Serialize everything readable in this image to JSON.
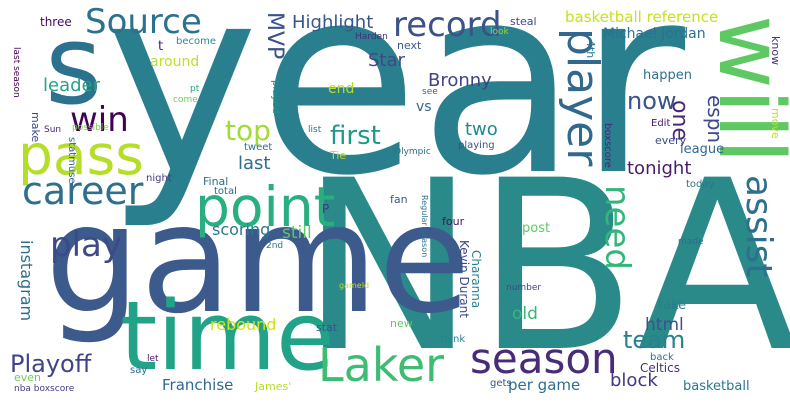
{
  "words": [
    {
      "id": "year",
      "text": "year",
      "color": "#2a7f8e"
    },
    {
      "id": "nba",
      "text": "NBA",
      "color": "#2a8a8a"
    },
    {
      "id": "game",
      "text": "game",
      "color": "#3c5a8c"
    },
    {
      "id": "time",
      "text": "time",
      "color": "#20a386"
    },
    {
      "id": "s",
      "text": "s",
      "color": "#2c728e"
    },
    {
      "id": "will",
      "text": "will",
      "color": "#5ec962"
    },
    {
      "id": "point",
      "text": "point",
      "color": "#29af7f"
    },
    {
      "id": "pass",
      "text": "pass",
      "color": "#b5de2b"
    },
    {
      "id": "laker",
      "text": "Laker",
      "color": "#3fbc73"
    },
    {
      "id": "season",
      "text": "season",
      "color": "#472c7a"
    },
    {
      "id": "player",
      "text": "player",
      "color": "#31688e"
    },
    {
      "id": "career",
      "text": "career",
      "color": "#2d708e"
    },
    {
      "id": "source",
      "text": "Source",
      "color": "#2c728e"
    },
    {
      "id": "record",
      "text": "record",
      "color": "#3b528b"
    },
    {
      "id": "assist",
      "text": "assist",
      "color": "#2e6e8e"
    },
    {
      "id": "play",
      "text": "play",
      "color": "#3e4989"
    },
    {
      "id": "win",
      "text": "win",
      "color": "#440154"
    },
    {
      "id": "playoff",
      "text": "Playoff",
      "color": "#414487"
    },
    {
      "id": "top",
      "text": "top",
      "color": "#a2da37"
    },
    {
      "id": "first",
      "text": "first",
      "color": "#1f9a8a"
    },
    {
      "id": "need",
      "text": "need",
      "color": "#32b67a"
    },
    {
      "id": "now",
      "text": "now",
      "color": "#3b528b"
    },
    {
      "id": "team",
      "text": "team",
      "color": "#26828e"
    },
    {
      "id": "one",
      "text": "one",
      "color": "#482878"
    },
    {
      "id": "espn",
      "text": "espn",
      "color": "#3e4a89"
    },
    {
      "id": "mvp",
      "text": "MVP",
      "color": "#3b528b"
    },
    {
      "id": "highlight",
      "text": "Highlight",
      "color": "#39568c"
    },
    {
      "id": "basketball-reference",
      "text": "basketball reference",
      "color": "#c8e020"
    },
    {
      "id": "michael-jordan",
      "text": "Michael Jordan",
      "color": "#2c728e"
    },
    {
      "id": "star",
      "text": "Star",
      "color": "#3f4788"
    },
    {
      "id": "bronny",
      "text": "Bronny",
      "color": "#414487"
    },
    {
      "id": "leader",
      "text": "leader",
      "color": "#20a386"
    },
    {
      "id": "instagram",
      "text": "instagram",
      "color": "#2d708e"
    },
    {
      "id": "scoring",
      "text": "scoring",
      "color": "#2a788e"
    },
    {
      "id": "still",
      "text": "still",
      "color": "#5ec962"
    },
    {
      "id": "last",
      "text": "last",
      "color": "#2e6d8e"
    },
    {
      "id": "tonight",
      "text": "tonight",
      "color": "#481b6d"
    },
    {
      "id": "two",
      "text": "two",
      "color": "#24878e"
    },
    {
      "id": "vs",
      "text": "vs",
      "color": "#31688e"
    },
    {
      "id": "html",
      "text": "html",
      "color": "#3b528b"
    },
    {
      "id": "block",
      "text": "block",
      "color": "#453781"
    },
    {
      "id": "old",
      "text": "old",
      "color": "#35b779"
    },
    {
      "id": "rebound",
      "text": "rebound",
      "color": "#d2e21b"
    },
    {
      "id": "franchise",
      "text": "Franchise",
      "color": "#31688e"
    },
    {
      "id": "per-game",
      "text": "per game",
      "color": "#2c728e"
    },
    {
      "id": "around",
      "text": "around",
      "color": "#bddf26"
    },
    {
      "id": "end",
      "text": "end",
      "color": "#b5de2b"
    },
    {
      "id": "happen",
      "text": "happen",
      "color": "#2c728e"
    },
    {
      "id": "league",
      "text": "league",
      "color": "#31688e"
    },
    {
      "id": "post",
      "text": "post",
      "color": "#5ec962"
    },
    {
      "id": "take",
      "text": "take",
      "color": "#27808e"
    },
    {
      "id": "basketball",
      "text": "basketball",
      "color": "#2a788e"
    },
    {
      "id": "celtics",
      "text": "Celtics",
      "color": "#46307e"
    },
    {
      "id": "kevin-durant",
      "text": "Kevin Durant",
      "color": "#3e4989"
    },
    {
      "id": "charanna",
      "text": "Charanna",
      "color": "#26818e"
    },
    {
      "id": "three",
      "text": "three",
      "color": "#460b5e"
    },
    {
      "id": "t",
      "text": "t",
      "color": "#482071"
    },
    {
      "id": "become",
      "text": "become",
      "color": "#21918c"
    },
    {
      "id": "steal",
      "text": "steal",
      "color": "#3f4889"
    },
    {
      "id": "know",
      "text": "know",
      "color": "#4b2f7f"
    },
    {
      "id": "look",
      "text": "look",
      "color": "#8fd744"
    },
    {
      "id": "harden",
      "text": "Harden",
      "color": "#472d7b"
    },
    {
      "id": "next",
      "text": "next",
      "color": "#39568c"
    },
    {
      "id": "4th",
      "text": "4th",
      "color": "#29798e"
    },
    {
      "id": "move",
      "text": "move",
      "color": "#c0df25"
    },
    {
      "id": "last-season",
      "text": "last season",
      "color": "#440154"
    },
    {
      "id": "make",
      "text": "make",
      "color": "#3e4989"
    },
    {
      "id": "pt",
      "text": "pt",
      "color": "#23a983"
    },
    {
      "id": "come",
      "text": "come",
      "color": "#6ece58"
    },
    {
      "id": "played",
      "text": "played",
      "color": "#21918c"
    },
    {
      "id": "see",
      "text": "see",
      "color": "#2f6c8e"
    },
    {
      "id": "list",
      "text": "list",
      "color": "#2c738e"
    },
    {
      "id": "edit",
      "text": "Edit",
      "color": "#481b6d"
    },
    {
      "id": "every",
      "text": "every",
      "color": "#3e4989"
    },
    {
      "id": "today",
      "text": "today",
      "color": "#2c728e"
    },
    {
      "id": "boxscore",
      "text": "boxscore",
      "color": "#472878"
    },
    {
      "id": "sun",
      "text": "Sun",
      "color": "#482475"
    },
    {
      "id": "statmuse",
      "text": "statmuse",
      "color": "#34618d"
    },
    {
      "id": "possible",
      "text": "possible",
      "color": "#7ad151"
    },
    {
      "id": "tweet",
      "text": "tweet",
      "color": "#2e6f8e"
    },
    {
      "id": "tie",
      "text": "Tie",
      "color": "#bade28"
    },
    {
      "id": "playing",
      "text": "playing",
      "color": "#3b528b"
    },
    {
      "id": "olympic",
      "text": "Olympic",
      "color": "#2c728e"
    },
    {
      "id": "night",
      "text": "night",
      "color": "#443983"
    },
    {
      "id": "final",
      "text": "Final",
      "color": "#2e6e8e"
    },
    {
      "id": "total",
      "text": "total",
      "color": "#31678e"
    },
    {
      "id": "2nd",
      "text": "2nd",
      "color": "#2b758e"
    },
    {
      "id": "p",
      "text": "P",
      "color": "#46327e"
    },
    {
      "id": "fan",
      "text": "fan",
      "color": "#375a8c"
    },
    {
      "id": "four",
      "text": "four",
      "color": "#471164"
    },
    {
      "id": "regular-season",
      "text": "Regular Season",
      "color": "#2c728e"
    },
    {
      "id": "made",
      "text": "made",
      "color": "#306a8e"
    },
    {
      "id": "gameid",
      "text": "gameId",
      "color": "#bddf26"
    },
    {
      "id": "stat",
      "text": "stat",
      "color": "#3b528b"
    },
    {
      "id": "new",
      "text": "new",
      "color": "#5ec962"
    },
    {
      "id": "number",
      "text": "number",
      "color": "#3f4889"
    },
    {
      "id": "think",
      "text": "think",
      "color": "#26818e"
    },
    {
      "id": "back",
      "text": "back",
      "color": "#2c738e"
    },
    {
      "id": "gets",
      "text": "gets",
      "color": "#3b528b"
    },
    {
      "id": "let",
      "text": "let",
      "color": "#481467"
    },
    {
      "id": "say",
      "text": "say",
      "color": "#31678e"
    },
    {
      "id": "james",
      "text": "James'",
      "color": "#b5de2b"
    },
    {
      "id": "even",
      "text": "even",
      "color": "#6ece58"
    },
    {
      "id": "nba-boxscore",
      "text": "nba boxscore",
      "color": "#443a83"
    }
  ]
}
